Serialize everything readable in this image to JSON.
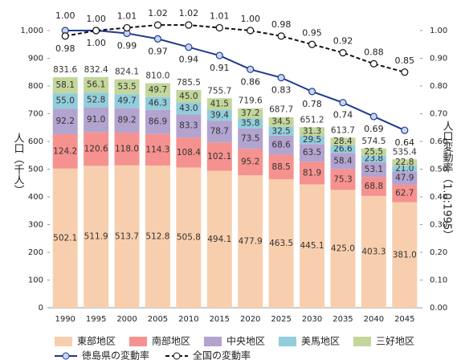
{
  "chart_data": {
    "type": "stacked-bar-line",
    "categories": [
      "1990",
      "1995",
      "2000",
      "2005",
      "2010",
      "2015",
      "2020",
      "2025",
      "2030",
      "2035",
      "2040",
      "2045"
    ],
    "series": [
      {
        "name": "東部地区",
        "color": "#f8cfae",
        "values": [
          502.1,
          511.9,
          513.7,
          512.8,
          505.8,
          494.1,
          477.9,
          463.5,
          445.1,
          425.0,
          403.3,
          381.0
        ],
        "value_labels": [
          "502.1",
          "511.9",
          "513.7",
          "512.8",
          "505.8",
          "494.1",
          "477.9",
          "463.5",
          "445.1",
          "425.0",
          "403.3",
          "381.0"
        ]
      },
      {
        "name": "南部地区",
        "color": "#f5928f",
        "values": [
          124.2,
          120.6,
          118.0,
          114.3,
          108.4,
          102.1,
          95.2,
          88.5,
          81.9,
          75.3,
          68.8,
          62.7
        ],
        "value_labels": [
          "124.2",
          "120.6",
          "118.0",
          "114.3",
          "108.4",
          "102.1",
          "95.2",
          "88.5",
          "81.9",
          "75.3",
          "68.8",
          "62.7"
        ]
      },
      {
        "name": "中央地区",
        "color": "#b3a3cf",
        "values": [
          92.2,
          91.0,
          89.2,
          86.9,
          83.3,
          78.7,
          73.5,
          68.6,
          63.5,
          58.4,
          53.1,
          47.9
        ],
        "value_labels": [
          "92.2",
          "91.0",
          "89.2",
          "86.9",
          "83.3",
          "78.7",
          "73.5",
          "68.6",
          "63.5",
          "58.4",
          "53.1",
          "47.9"
        ]
      },
      {
        "name": "美馬地区",
        "color": "#92cddc",
        "values": [
          55.0,
          52.8,
          49.7,
          46.3,
          43.0,
          39.4,
          35.8,
          32.5,
          29.5,
          26.6,
          23.8,
          21.0
        ],
        "value_labels": [
          "55.0",
          "52.8",
          "49.7",
          "46.3",
          "43.0",
          "39.4",
          "35.8",
          "32.5",
          "29.5",
          "26.6",
          "23.8",
          "21.0"
        ]
      },
      {
        "name": "三好地区",
        "color": "#c3d69b",
        "values": [
          58.1,
          56.1,
          53.5,
          49.7,
          45.0,
          41.5,
          37.2,
          34.5,
          31.3,
          28.4,
          25.5,
          22.8
        ],
        "value_labels": [
          "58.1",
          "56.1",
          "53.5",
          "49.7",
          "45.0",
          "41.5",
          "37.2",
          "34.5",
          "31.3",
          "28.4",
          "25.5",
          "22.8"
        ]
      },
      {
        "name": "徳島県の変動率",
        "color": "#1f3a8f",
        "axis": "y2",
        "line": "solid",
        "values": [
          1.0,
          1.0,
          0.99,
          0.97,
          0.94,
          0.91,
          0.86,
          0.83,
          0.78,
          0.74,
          0.69,
          0.64
        ],
        "value_labels": [
          "1.00",
          "1.00",
          "0.99",
          "0.97",
          "0.94",
          "0.91",
          "0.86",
          "0.83",
          "0.78",
          "0.74",
          "0.69",
          "0.64"
        ]
      },
      {
        "name": "全国の変動率",
        "color": "#111111",
        "axis": "y2",
        "line": "dashed",
        "values": [
          0.98,
          1.0,
          1.01,
          1.02,
          1.02,
          1.01,
          1.0,
          0.98,
          0.95,
          0.92,
          0.88,
          0.85
        ],
        "value_labels": [
          "0.98",
          "1.00",
          "1.01",
          "1.02",
          "1.02",
          "1.01",
          "1.00",
          "0.98",
          "0.95",
          "0.92",
          "0.88",
          "0.85"
        ]
      }
    ],
    "totals": [
      831.6,
      832.4,
      824.1,
      810.0,
      785.5,
      755.7,
      719.6,
      687.7,
      651.2,
      613.7,
      574.5,
      535.4
    ],
    "total_labels": [
      "831.6",
      "832.4",
      "824.1",
      "810.0",
      "785.5",
      "755.7",
      "719.6",
      "687.7",
      "651.2",
      "613.7",
      "574.5",
      "535.4"
    ],
    "y_label": "人口（千人）",
    "y2_label": "人口変動率（1.0:1995）",
    "ylim": [
      0,
      1000
    ],
    "yticks": [
      0,
      100,
      200,
      300,
      400,
      500,
      600,
      700,
      800,
      900,
      {
        "value": 1000,
        "label": "1,000"
      }
    ],
    "y2lim": [
      0,
      1.0
    ],
    "y2ticks": [
      {
        "value": 0,
        "label": "0.00"
      },
      {
        "value": 0.1,
        "label": "0.10"
      },
      {
        "value": 0.2,
        "label": "0.20"
      },
      {
        "value": 0.3,
        "label": "0.30"
      },
      {
        "value": 0.4,
        "label": "0.40"
      },
      {
        "value": 0.5,
        "label": "0.50"
      },
      {
        "value": 0.6,
        "label": "0.60"
      },
      {
        "value": 0.7,
        "label": "0.70"
      },
      {
        "value": 0.8,
        "label": "0.80"
      },
      {
        "value": 0.9,
        "label": "0.90"
      },
      {
        "value": 1.0,
        "label": "1.00"
      }
    ],
    "grid": false
  }
}
